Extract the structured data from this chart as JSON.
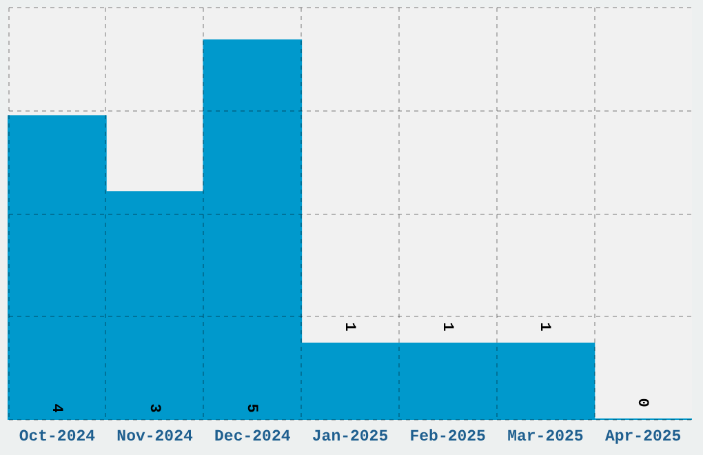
{
  "chart_data": {
    "type": "bar",
    "categories": [
      "Oct-2024",
      "Nov-2024",
      "Dec-2024",
      "Jan-2025",
      "Feb-2025",
      "Mar-2025",
      "Apr-2025"
    ],
    "values": [
      4,
      3,
      5,
      1,
      1,
      1,
      0
    ],
    "color": "#0099cc",
    "data_labels": true,
    "grid": true,
    "ylim": [
      0,
      5.44
    ],
    "yticks": [
      {
        "value": 0,
        "label": null
      },
      {
        "value": 1.36,
        "label": null
      },
      {
        "value": 2.72,
        "label": null
      },
      {
        "value": 4.08,
        "label": null
      },
      {
        "value": 5.44,
        "label": null
      }
    ],
    "tick_labels": "x"
  }
}
